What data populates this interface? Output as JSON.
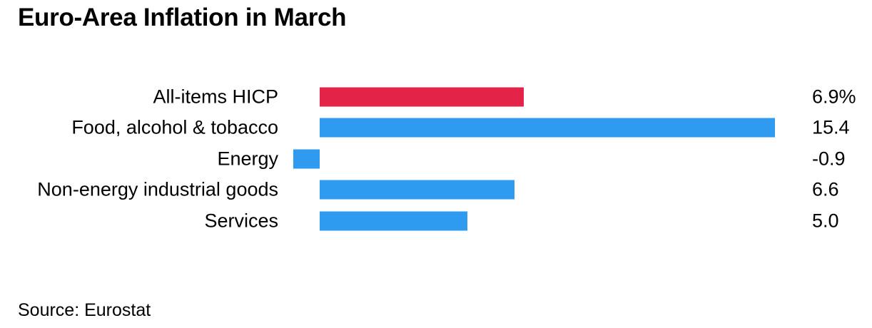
{
  "title": "Euro-Area Inflation in March",
  "source": "Source: Eurostat",
  "colors": {
    "background": "#ffffff",
    "text": "#000000",
    "default_bar": "#2e9bf0",
    "highlight_bar": "#e32448"
  },
  "chart_data": {
    "type": "bar",
    "orientation": "horizontal",
    "title": "Euro-Area Inflation in March",
    "unit": "%",
    "categories": [
      "All-items HICP",
      "Food, alcohol & tobacco",
      "Energy",
      "Non-energy industrial goods",
      "Services"
    ],
    "values": [
      6.9,
      15.4,
      -0.9,
      6.6,
      5.0
    ],
    "value_labels": [
      "6.9%",
      "15.4",
      "-0.9",
      "6.6",
      "5.0"
    ],
    "highlight_index": 0,
    "xlim": [
      -0.9,
      15.4
    ],
    "baseline": 0,
    "grid": false,
    "legend": false,
    "axis_visible": false,
    "source_label": "Source: Eurostat"
  }
}
